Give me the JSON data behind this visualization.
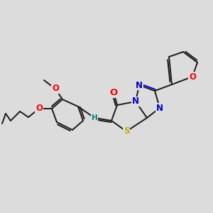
{
  "background_color": "#dcdcdc",
  "bond_color": "#1a1a1a",
  "atom_colors": {
    "O": "#ff0000",
    "N": "#0000cc",
    "S": "#ccaa00",
    "H": "#008080",
    "C": "#1a1a1a"
  },
  "figsize": [
    3.0,
    3.0
  ],
  "dpi": 100,
  "lw": 1.4,
  "fs": 8.5
}
